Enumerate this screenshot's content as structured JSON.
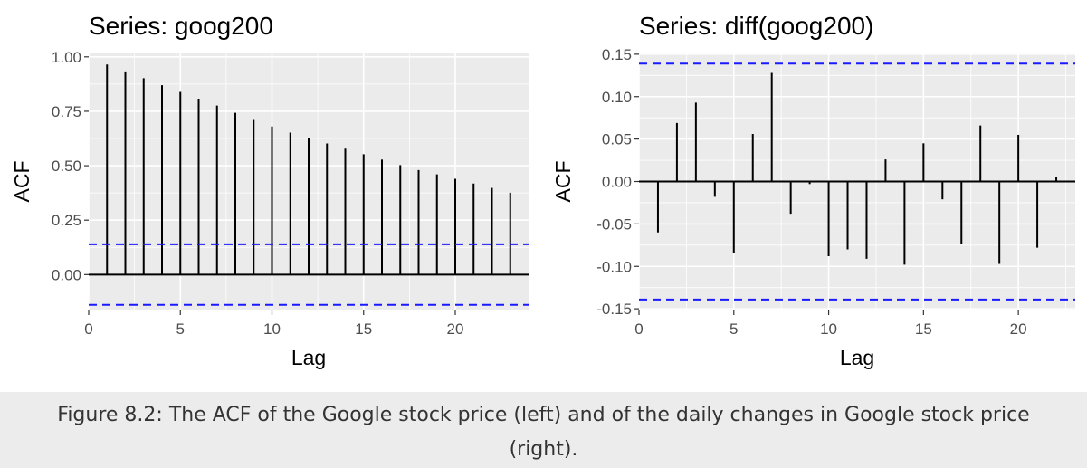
{
  "caption": "Figure 8.2: The ACF of the Google stock price (left) and of the daily changes in Google stock price (right).",
  "colors": {
    "panel_background": "#EBEBEB",
    "grid": "#FFFFFF",
    "bars": "#000000",
    "confidence_bounds": "#1A1AFF",
    "caption_background": "#ECECEC"
  },
  "chart_data": [
    {
      "type": "bar",
      "title": "Series: goog200",
      "xlabel": "Lag",
      "ylabel": "ACF",
      "x": [
        1,
        2,
        3,
        4,
        5,
        6,
        7,
        8,
        9,
        10,
        11,
        12,
        13,
        14,
        15,
        16,
        17,
        18,
        19,
        20,
        21,
        22,
        23
      ],
      "values": [
        0.965,
        0.933,
        0.902,
        0.87,
        0.839,
        0.808,
        0.776,
        0.743,
        0.71,
        0.68,
        0.652,
        0.627,
        0.602,
        0.578,
        0.553,
        0.528,
        0.503,
        0.48,
        0.46,
        0.44,
        0.418,
        0.398,
        0.376
      ],
      "confidence_bound": 0.139,
      "xlim": [
        0,
        24
      ],
      "ylim": [
        -0.165,
        1.02
      ],
      "x_ticks": [
        0,
        5,
        10,
        15,
        20
      ],
      "x_tick_labels": [
        "0",
        "5",
        "10",
        "15",
        "20"
      ],
      "y_ticks": [
        0,
        0.25,
        0.5,
        0.75,
        1
      ],
      "y_tick_labels": [
        "0.00",
        "0.25",
        "0.50",
        "0.75",
        "1.00"
      ],
      "grid": true
    },
    {
      "type": "bar",
      "title": "Series: diff(goog200)",
      "xlabel": "Lag",
      "ylabel": "ACF",
      "x": [
        1,
        2,
        3,
        4,
        5,
        6,
        7,
        8,
        9,
        10,
        11,
        12,
        13,
        14,
        15,
        16,
        17,
        18,
        19,
        20,
        21,
        22
      ],
      "values": [
        -0.06,
        0.069,
        0.093,
        -0.018,
        -0.084,
        0.056,
        0.128,
        -0.038,
        -0.003,
        -0.088,
        -0.08,
        -0.091,
        0.026,
        -0.098,
        0.045,
        -0.021,
        -0.074,
        0.066,
        -0.097,
        0.055,
        -0.078,
        0.005
      ],
      "confidence_bound": 0.139,
      "xlim": [
        0,
        23
      ],
      "ylim": [
        -0.152,
        0.152
      ],
      "x_ticks": [
        0,
        5,
        10,
        15,
        20
      ],
      "x_tick_labels": [
        "0",
        "5",
        "10",
        "15",
        "20"
      ],
      "y_ticks": [
        -0.15,
        -0.1,
        -0.05,
        0,
        0.05,
        0.1,
        0.15
      ],
      "y_tick_labels": [
        "-0.15",
        "-0.10",
        "-0.05",
        "0.00",
        "0.05",
        "0.10",
        "0.15"
      ],
      "grid": true
    }
  ]
}
